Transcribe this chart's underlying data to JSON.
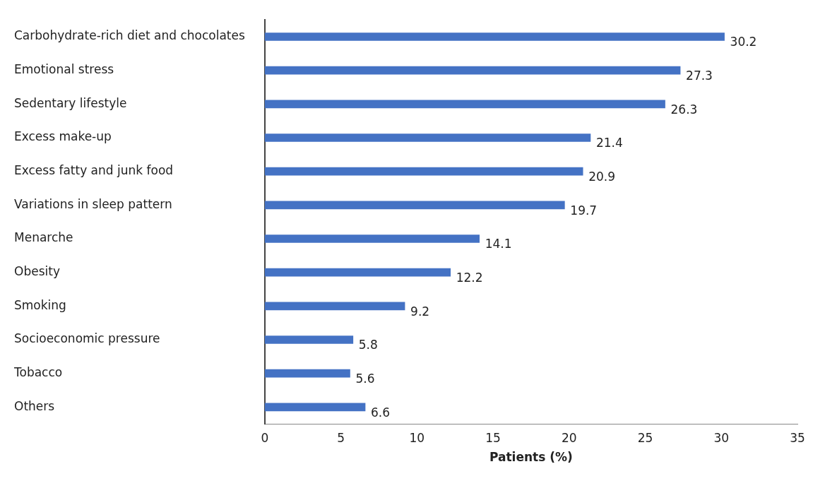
{
  "chart_data": {
    "type": "bar",
    "orientation": "horizontal",
    "xlabel": "Patients (%)",
    "categories": [
      "Carbohydrate-rich diet and chocolates",
      "Emotional stress",
      "Sedentary lifestyle",
      "Excess make-up",
      "Excess fatty and junk food",
      "Variations in sleep pattern",
      "Menarche",
      "Obesity",
      "Smoking",
      "Socioeconomic pressure",
      "Tobacco",
      "Others"
    ],
    "values": [
      30.2,
      27.3,
      26.3,
      21.4,
      20.9,
      19.7,
      14.1,
      12.2,
      9.2,
      5.8,
      5.6,
      6.6
    ],
    "color": "#4472c4",
    "xlim": [
      0,
      35
    ],
    "xticks": [
      0,
      5,
      10,
      15,
      20,
      25,
      30,
      35
    ],
    "grid": false,
    "legend": false,
    "data_labels": true
  }
}
